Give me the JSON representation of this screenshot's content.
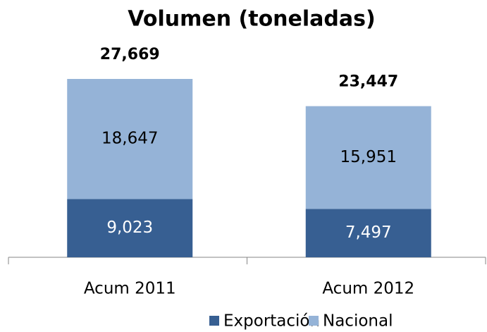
{
  "chart_data": {
    "type": "stacked-bar",
    "title": "Volumen (toneladas)",
    "categories": [
      "Acum 2011",
      "Acum 2012"
    ],
    "series": [
      {
        "name": "Exportación",
        "color": "#375f92",
        "values": [
          9023,
          7497
        ],
        "value_labels": [
          "9,023",
          "7,497"
        ]
      },
      {
        "name": "Nacional",
        "color": "#95b3d7",
        "values": [
          18647,
          15951
        ],
        "value_labels": [
          "18,647",
          "15,951"
        ]
      }
    ],
    "totals": [
      27669,
      23447
    ],
    "total_labels": [
      "27,669",
      "23,447"
    ],
    "legend": "bottom"
  }
}
